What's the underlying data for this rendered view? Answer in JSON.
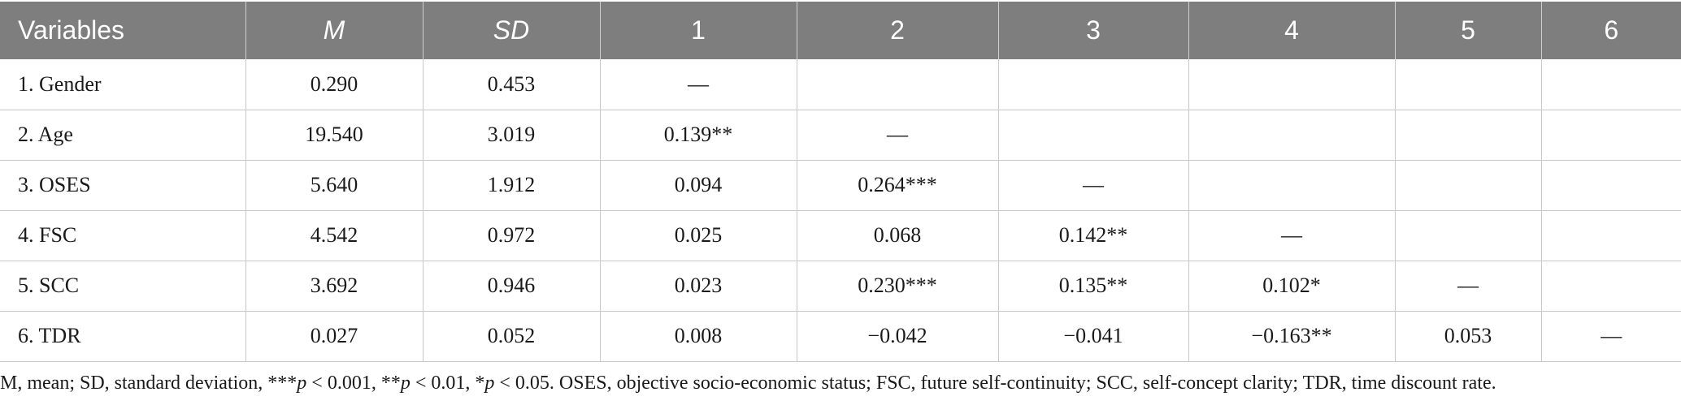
{
  "table": {
    "headers": [
      "Variables",
      "M",
      "SD",
      "1",
      "2",
      "3",
      "4",
      "5",
      "6"
    ],
    "rows": [
      [
        "1. Gender",
        "0.290",
        "0.453",
        "—",
        "",
        "",
        "",
        "",
        ""
      ],
      [
        "2. Age",
        "19.540",
        "3.019",
        "0.139**",
        "—",
        "",
        "",
        "",
        ""
      ],
      [
        "3. OSES",
        "5.640",
        "1.912",
        "0.094",
        "0.264***",
        "—",
        "",
        "",
        ""
      ],
      [
        "4. FSC",
        "4.542",
        "0.972",
        "0.025",
        "0.068",
        "0.142**",
        "—",
        "",
        ""
      ],
      [
        "5. SCC",
        "3.692",
        "0.946",
        "0.023",
        "0.230***",
        "0.135**",
        "0.102*",
        "—",
        ""
      ],
      [
        "6. TDR",
        "0.027",
        "0.052",
        "0.008",
        "−0.042",
        "−0.041",
        "−0.163**",
        "0.053",
        "—"
      ]
    ]
  },
  "note": {
    "part1": "M, mean; SD, standard deviation, ***",
    "p1": "p",
    "part2": " < 0.001, **",
    "p2": "p",
    "part3": " < 0.01, *",
    "p3": "p",
    "part4": " < 0.05. OSES, objective socio-economic status; FSC, future self-continuity; SCC, self-concept clarity; TDR, time discount rate."
  },
  "colors": {
    "header_bg": "#7e7e7e",
    "header_text": "#ffffff",
    "grid": "#c8c8c8"
  }
}
